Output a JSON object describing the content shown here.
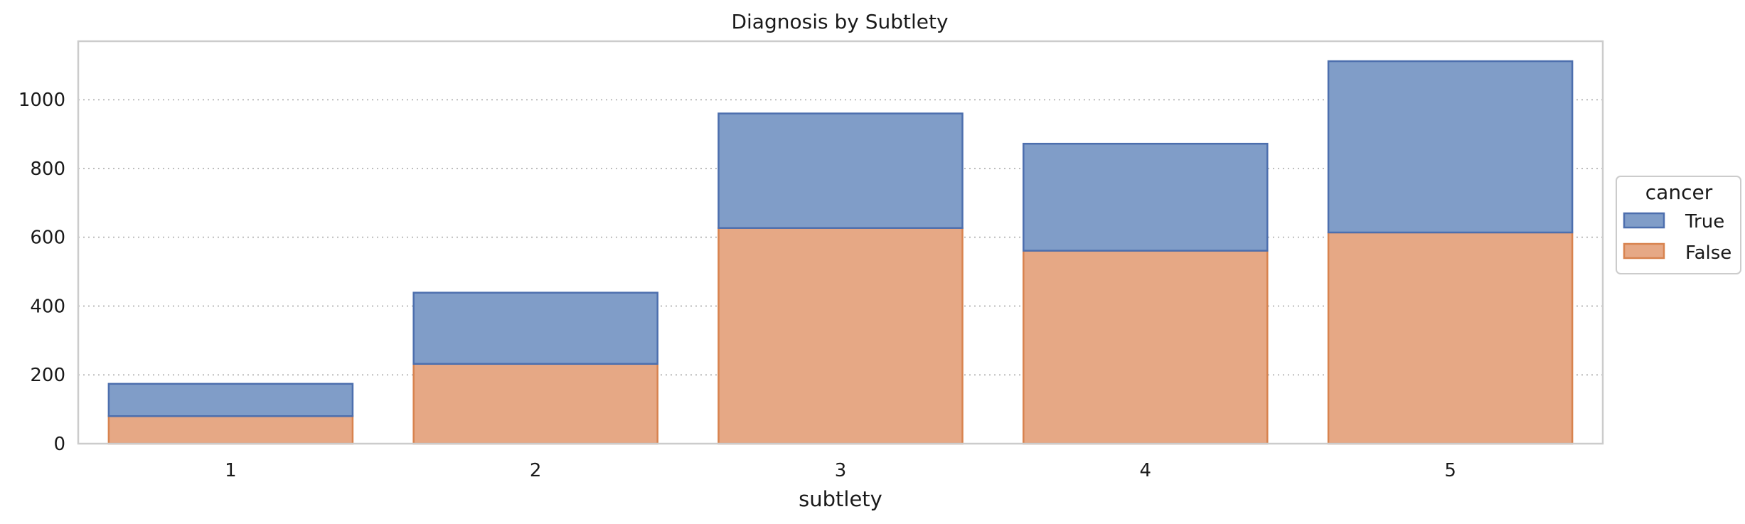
{
  "chart_data": {
    "type": "bar",
    "stacked": true,
    "title": "Diagnosis by Subtlety",
    "xlabel": "subtlety",
    "ylabel": "",
    "categories": [
      "1",
      "2",
      "3",
      "4",
      "5"
    ],
    "series": [
      {
        "name": "False",
        "values": [
          80,
          232,
          627,
          561,
          614
        ],
        "color": "#e6a885",
        "edge": "#d8834f"
      },
      {
        "name": "True",
        "values": [
          94,
          207,
          333,
          311,
          498
        ],
        "color": "#809dc8",
        "edge": "#4d6fae"
      }
    ],
    "ylim": [
      0,
      1170
    ],
    "yticks": [
      0,
      200,
      400,
      600,
      800,
      1000
    ],
    "grid": "horizontal dotted",
    "legend": {
      "title": "cancer",
      "placement": "right outside",
      "entries": [
        "True",
        "False"
      ]
    }
  }
}
